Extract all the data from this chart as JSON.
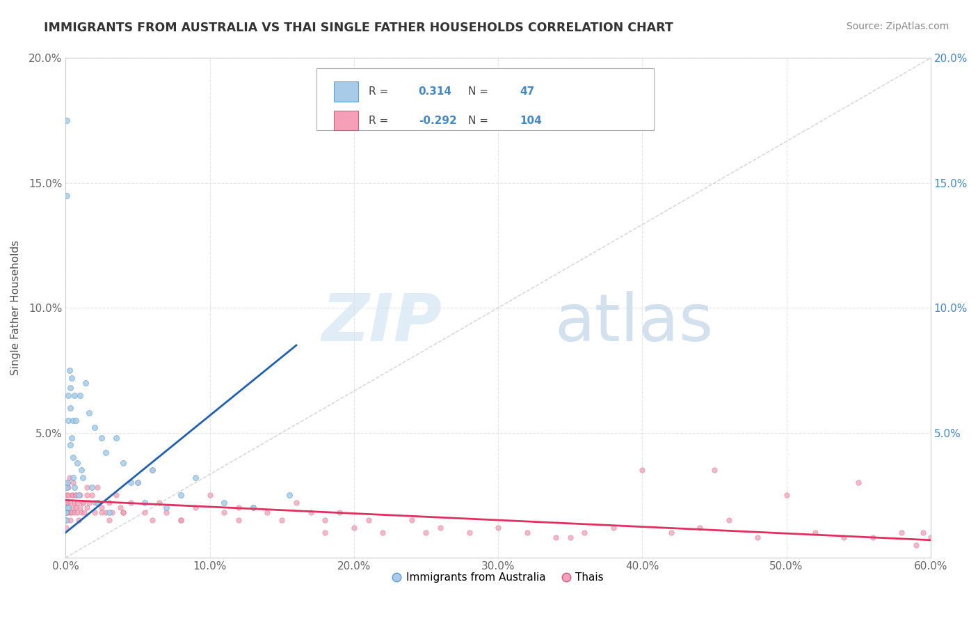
{
  "title": "IMMIGRANTS FROM AUSTRALIA VS THAI SINGLE FATHER HOUSEHOLDS CORRELATION CHART",
  "source": "Source: ZipAtlas.com",
  "ylabel": "Single Father Households",
  "xlim": [
    0.0,
    0.6
  ],
  "ylim": [
    0.0,
    0.2
  ],
  "xtick_vals": [
    0.0,
    0.1,
    0.2,
    0.3,
    0.4,
    0.5,
    0.6
  ],
  "xticklabels": [
    "0.0%",
    "10.0%",
    "20.0%",
    "30.0%",
    "40.0%",
    "50.0%",
    "60.0%"
  ],
  "ytick_vals": [
    0.0,
    0.05,
    0.1,
    0.15,
    0.2
  ],
  "yticklabels_left": [
    "",
    "5.0%",
    "10.0%",
    "15.0%",
    "20.0%"
  ],
  "yticklabels_right": [
    "",
    "5.0%",
    "10.0%",
    "15.0%",
    "20.0%"
  ],
  "australia": {
    "label": "Immigrants from Australia",
    "color": "#a8cce8",
    "edge_color": "#5a9fd4",
    "trend_color": "#2060b0",
    "R": "0.314",
    "N": "47",
    "x": [
      0.0005,
      0.0005,
      0.0008,
      0.001,
      0.001,
      0.001,
      0.0015,
      0.002,
      0.002,
      0.002,
      0.0025,
      0.003,
      0.003,
      0.003,
      0.004,
      0.004,
      0.005,
      0.005,
      0.005,
      0.006,
      0.006,
      0.007,
      0.008,
      0.009,
      0.01,
      0.011,
      0.012,
      0.014,
      0.016,
      0.018,
      0.02,
      0.022,
      0.025,
      0.028,
      0.03,
      0.035,
      0.04,
      0.045,
      0.05,
      0.055,
      0.06,
      0.07,
      0.08,
      0.09,
      0.11,
      0.13,
      0.155
    ],
    "y": [
      0.018,
      0.015,
      0.02,
      0.175,
      0.145,
      0.028,
      0.03,
      0.065,
      0.055,
      0.02,
      0.075,
      0.068,
      0.06,
      0.045,
      0.072,
      0.048,
      0.04,
      0.055,
      0.032,
      0.065,
      0.028,
      0.055,
      0.038,
      0.025,
      0.065,
      0.035,
      0.032,
      0.07,
      0.058,
      0.028,
      0.052,
      0.022,
      0.048,
      0.042,
      0.018,
      0.048,
      0.038,
      0.03,
      0.03,
      0.022,
      0.035,
      0.02,
      0.025,
      0.032,
      0.022,
      0.02,
      0.025
    ]
  },
  "thais": {
    "label": "Thais",
    "color": "#f4a0b8",
    "edge_color": "#d06080",
    "trend_color": "#e03060",
    "R": "-0.292",
    "N": "104",
    "x": [
      0.0002,
      0.0003,
      0.0005,
      0.0005,
      0.0008,
      0.001,
      0.001,
      0.001,
      0.0015,
      0.0015,
      0.002,
      0.002,
      0.002,
      0.0025,
      0.003,
      0.003,
      0.003,
      0.004,
      0.004,
      0.005,
      0.005,
      0.005,
      0.006,
      0.006,
      0.007,
      0.007,
      0.008,
      0.008,
      0.009,
      0.01,
      0.01,
      0.011,
      0.012,
      0.013,
      0.015,
      0.015,
      0.016,
      0.018,
      0.02,
      0.022,
      0.025,
      0.028,
      0.03,
      0.032,
      0.035,
      0.038,
      0.04,
      0.045,
      0.05,
      0.055,
      0.06,
      0.065,
      0.07,
      0.08,
      0.09,
      0.1,
      0.11,
      0.12,
      0.13,
      0.14,
      0.15,
      0.16,
      0.17,
      0.18,
      0.19,
      0.2,
      0.21,
      0.22,
      0.24,
      0.26,
      0.28,
      0.3,
      0.32,
      0.34,
      0.36,
      0.38,
      0.4,
      0.42,
      0.44,
      0.46,
      0.48,
      0.5,
      0.52,
      0.54,
      0.56,
      0.58,
      0.59,
      0.595,
      0.6,
      0.015,
      0.025,
      0.04,
      0.06,
      0.08,
      0.12,
      0.18,
      0.25,
      0.35,
      0.45,
      0.55,
      0.007,
      0.012,
      0.02,
      0.03
    ],
    "y": [
      0.018,
      0.012,
      0.028,
      0.015,
      0.022,
      0.025,
      0.02,
      0.018,
      0.03,
      0.022,
      0.028,
      0.025,
      0.018,
      0.032,
      0.022,
      0.018,
      0.015,
      0.025,
      0.018,
      0.03,
      0.025,
      0.02,
      0.022,
      0.018,
      0.025,
      0.02,
      0.022,
      0.018,
      0.015,
      0.025,
      0.02,
      0.018,
      0.022,
      0.018,
      0.028,
      0.02,
      0.022,
      0.025,
      0.022,
      0.028,
      0.02,
      0.018,
      0.022,
      0.018,
      0.025,
      0.02,
      0.018,
      0.022,
      0.03,
      0.018,
      0.015,
      0.022,
      0.018,
      0.015,
      0.02,
      0.025,
      0.018,
      0.015,
      0.02,
      0.018,
      0.015,
      0.022,
      0.018,
      0.015,
      0.018,
      0.012,
      0.015,
      0.01,
      0.015,
      0.012,
      0.01,
      0.012,
      0.01,
      0.008,
      0.01,
      0.012,
      0.035,
      0.01,
      0.012,
      0.015,
      0.008,
      0.025,
      0.01,
      0.008,
      0.008,
      0.01,
      0.005,
      0.01,
      0.008,
      0.025,
      0.018,
      0.018,
      0.035,
      0.015,
      0.02,
      0.01,
      0.01,
      0.008,
      0.035,
      0.03,
      0.025,
      0.022,
      0.018,
      0.015
    ]
  },
  "diagonal_color": "#c0c0c0",
  "grid_color": "#e5e5e5",
  "background": "#ffffff",
  "title_color": "#333333",
  "source_color": "#888888",
  "left_tick_color": "#666666",
  "right_tick_color": "#4488cc",
  "ylabel_color": "#555555",
  "watermark_zip_color": "#cce0f0",
  "watermark_atlas_color": "#b0c8e0",
  "legend_box_color": "#4488cc",
  "legend_label_color": "#444444"
}
